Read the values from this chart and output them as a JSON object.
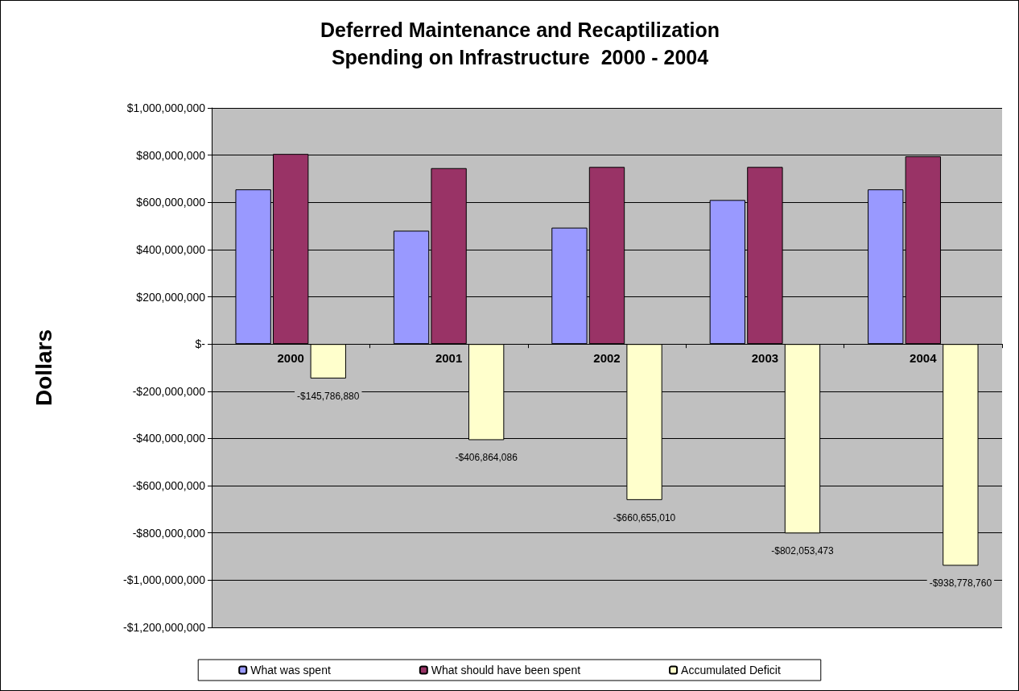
{
  "chart_data": {
    "type": "bar",
    "title": "Deferred Maintenance and Recaptilization\nSpending on Infrastructure  2000 - 2004",
    "ylabel": "Dollars",
    "categories": [
      "2000",
      "2001",
      "2002",
      "2003",
      "2004"
    ],
    "series": [
      {
        "name": "What was spent",
        "color": "#9999ff",
        "values": [
          655000000,
          480000000,
          493000000,
          610000000,
          655000000
        ]
      },
      {
        "name": "What should have been spent",
        "color": "#993366",
        "values": [
          805000000,
          745000000,
          750000000,
          750000000,
          795000000
        ]
      },
      {
        "name": "Accumulated Deficit",
        "color": "#ffffcc",
        "values": [
          -145786880,
          -406864086,
          -660655010,
          -802053473,
          -938778760
        ],
        "value_labels": [
          "-$145,786,880",
          "-$406,864,086",
          "-$660,655,010",
          "-$802,053,473",
          "-$938,778,760"
        ]
      }
    ],
    "ylim": [
      -1200000000,
      1000000000
    ],
    "yticks": [
      {
        "value": -1200000000,
        "label": "-$1,200,000,000"
      },
      {
        "value": -1000000000,
        "label": "-$1,000,000,000"
      },
      {
        "value": -800000000,
        "label": "-$800,000,000"
      },
      {
        "value": -600000000,
        "label": "-$600,000,000"
      },
      {
        "value": -400000000,
        "label": "-$400,000,000"
      },
      {
        "value": -200000000,
        "label": "-$200,000,000"
      },
      {
        "value": 0,
        "label": "$-"
      },
      {
        "value": 200000000,
        "label": "$200,000,000"
      },
      {
        "value": 400000000,
        "label": "$400,000,000"
      },
      {
        "value": 600000000,
        "label": "$600,000,000"
      },
      {
        "value": 800000000,
        "label": "$800,000,000"
      },
      {
        "value": 1000000000,
        "label": "$1,000,000,000"
      }
    ],
    "grid": "y",
    "legend": "bottom"
  }
}
